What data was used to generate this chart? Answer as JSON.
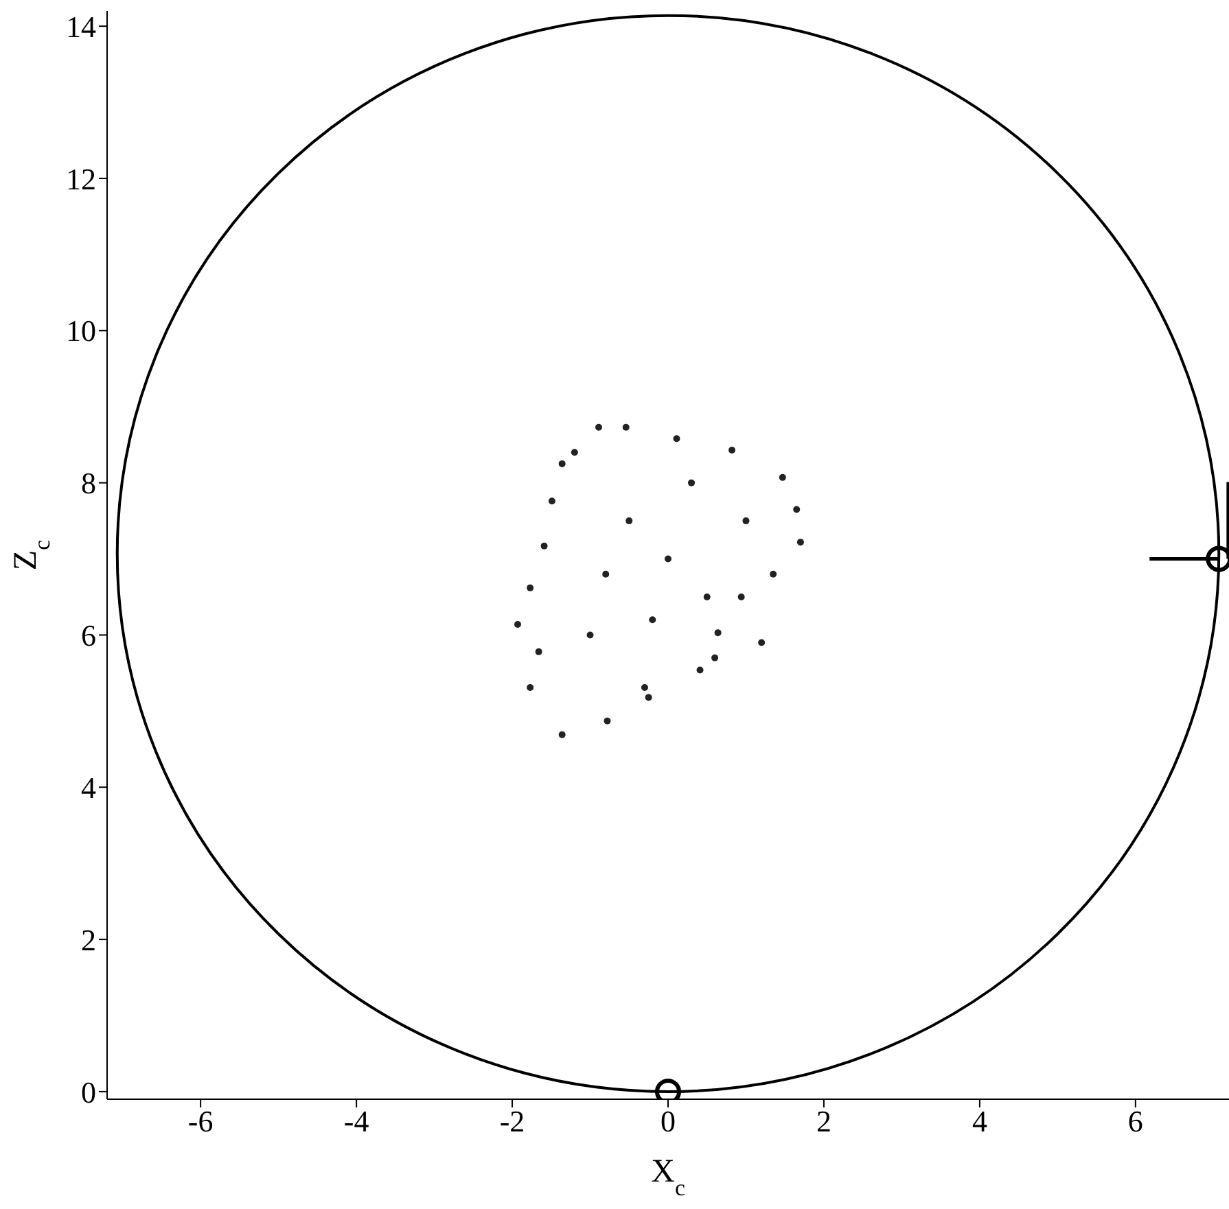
{
  "chart_data": {
    "type": "scatter",
    "xlabel": "X$_{c}$",
    "ylabel": "Z$_{c}$",
    "xlim": [
      -7.2,
      7.2
    ],
    "ylim": [
      -0.1,
      14.2
    ],
    "xticks": [
      -6,
      -4,
      -2,
      0,
      2,
      4,
      6
    ],
    "yticks": [
      0,
      2,
      4,
      6,
      8,
      10,
      12,
      14
    ],
    "grid": false,
    "legend": false,
    "series": [
      {
        "marker": "circle",
        "color": "#222222",
        "x": [
          -0.89,
          -0.54,
          0.11,
          0.82,
          1.47,
          1.65,
          1.7,
          1.35,
          0.94,
          0.64,
          0.41,
          -0.25,
          -0.78,
          -1.36,
          -1.77,
          -1.93,
          -1.77,
          -1.59,
          -1.49,
          -1.36,
          -1.66,
          -0.3,
          0,
          -0.5,
          0.5,
          1,
          -1,
          0.3,
          -0.8,
          -1.2,
          1.2,
          0.6,
          -0.2
        ],
        "values": [
          8.73,
          8.73,
          8.58,
          8.43,
          8.07,
          7.65,
          7.22,
          6.8,
          6.5,
          6.03,
          5.54,
          5.18,
          4.87,
          4.69,
          5.31,
          6.14,
          6.62,
          7.17,
          7.76,
          8.25,
          5.78,
          5.31,
          7,
          7.5,
          6.5,
          7.5,
          6,
          8,
          6.8,
          8.4,
          5.9,
          5.7,
          6.2
        ]
      },
      {
        "type": "line",
        "marker": "none",
        "color": "#000000",
        "x": [
          6.18,
          7.07
        ],
        "values": [
          7,
          7
        ]
      },
      {
        "type": "line",
        "marker": "none",
        "color": "#000000",
        "x": [
          7.19,
          7.19
        ],
        "values": [
          7,
          8.01
        ]
      },
      {
        "type": "scatter",
        "marker": "circle",
        "color": "#000000",
        "x": [
          0,
          7.07
        ],
        "values": [
          0,
          7
        ]
      }
    ]
  }
}
